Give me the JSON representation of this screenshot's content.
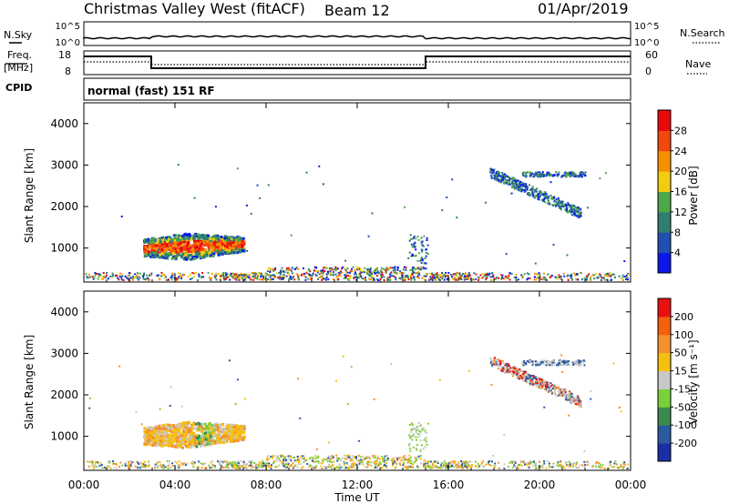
{
  "header": {
    "station": "Christmas Valley West (fitACF)",
    "beam": "Beam 12",
    "date": "01/Apr/2019"
  },
  "noise_panel": {
    "left_label": "N.Sky",
    "right_label": "N.Search",
    "left_ticks": [
      "10^5",
      "10^0"
    ],
    "right_ticks": [
      "10^5",
      "10^0"
    ]
  },
  "freq_panel": {
    "left_label": "Freq.",
    "left_unit": "[MHz]",
    "left_ticks": [
      "18",
      "8"
    ],
    "right_label": "Nave",
    "right_ticks": [
      "60",
      "0"
    ]
  },
  "cpid": {
    "label": "CPID",
    "value": "normal (fast) 151 RF"
  },
  "chart_data": [
    {
      "type": "heatmap",
      "parameter": "Power",
      "ylabel": "Slant Range [km]",
      "xlabel": "",
      "y_ticks": [
        "1000",
        "2000",
        "3000",
        "4000"
      ],
      "ylim": [
        180,
        4500
      ],
      "xlim_hours": [
        0,
        24
      ],
      "colorbar_label": "Power [dB]",
      "colorbar_ticks": [
        "4",
        "8",
        "12",
        "16",
        "20",
        "24",
        "28"
      ],
      "colorbar_colors": [
        "#0a18e8",
        "#1f4fb0",
        "#2f7e70",
        "#4da848",
        "#f2cc10",
        "#f59000",
        "#f24810",
        "#e80a0a"
      ]
    },
    {
      "type": "heatmap",
      "parameter": "Velocity",
      "ylabel": "Slant Range [km]",
      "xlabel": "Time UT",
      "x_ticks": [
        "00:00",
        "04:00",
        "08:00",
        "12:00",
        "16:00",
        "20:00",
        "00:00"
      ],
      "y_ticks": [
        "1000",
        "2000",
        "3000",
        "4000"
      ],
      "ylim": [
        180,
        4500
      ],
      "xlim_hours": [
        0,
        24
      ],
      "colorbar_label": "Velocity [m s⁻¹]",
      "colorbar_ticks": [
        "200",
        "100",
        "50",
        "15",
        "-15",
        "-50",
        "-100",
        "-200"
      ],
      "colorbar_colors": [
        "#1a2ea8",
        "#2a5aa0",
        "#3a8a50",
        "#7ad03a",
        "#c8c8c8",
        "#f5c010",
        "#f59030",
        "#f26010",
        "#e81010"
      ]
    }
  ]
}
